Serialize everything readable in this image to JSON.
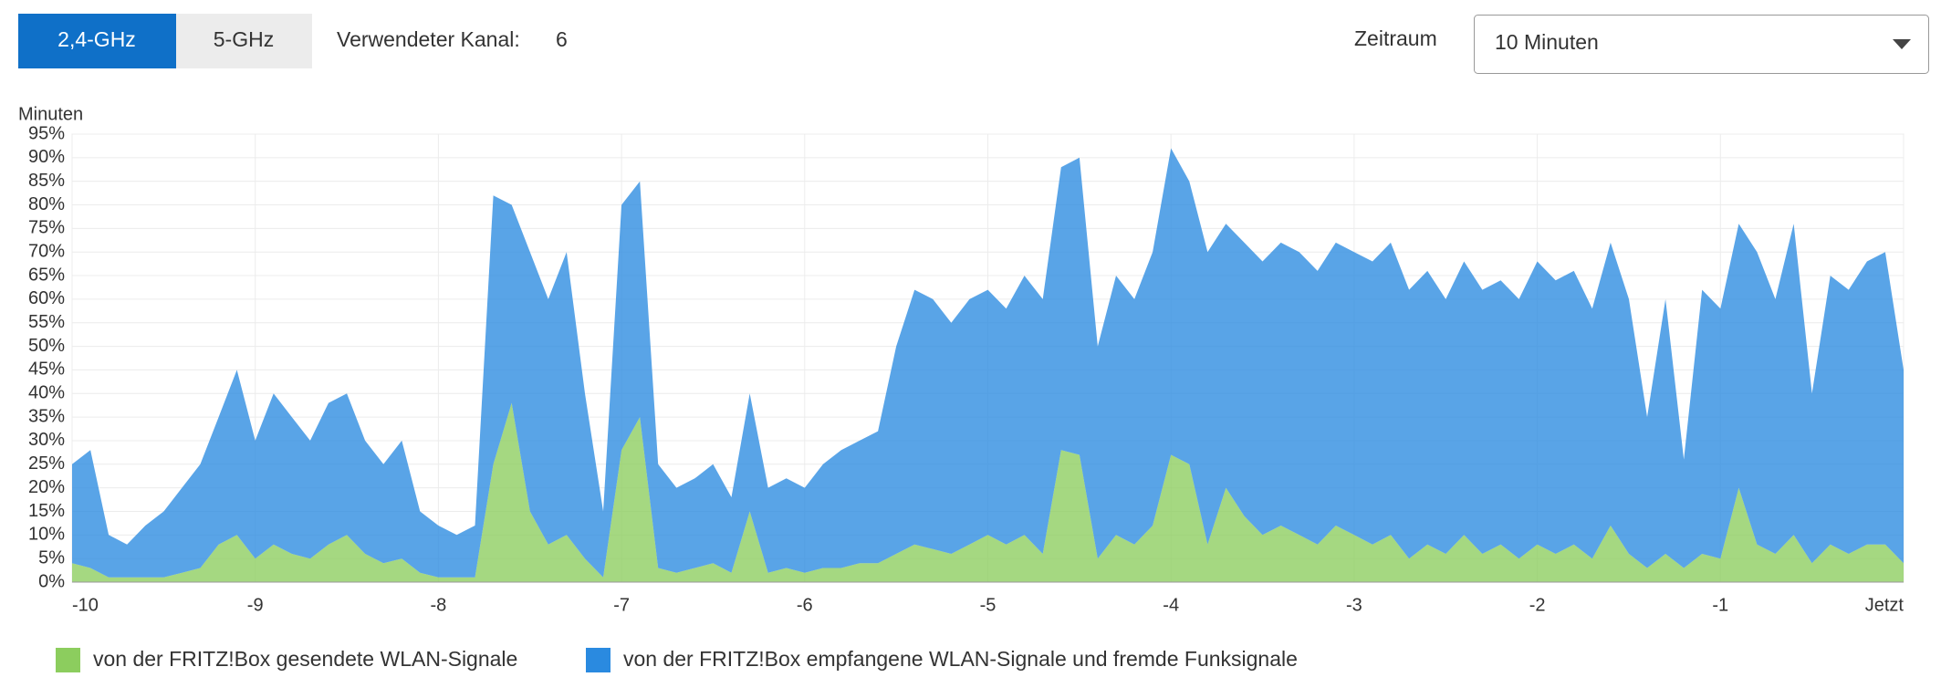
{
  "tabs": [
    "2,4-GHz",
    "5-GHz"
  ],
  "channel_label": "Verwendeter Kanal:",
  "channel": 6,
  "period_label": "Zeitraum",
  "period_value": "10 Minuten",
  "chart_data": {
    "type": "area",
    "stacked": true,
    "y_label": "Minuten",
    "xlim": [
      -10,
      0
    ],
    "xticks": [
      -10,
      -9,
      -8,
      -7,
      -6,
      -5,
      -4,
      -3,
      -2,
      -1,
      {
        "value": 0,
        "label": "Jetzt"
      }
    ],
    "ylim": [
      0,
      95
    ],
    "yticks": [
      {
        "value": 0,
        "label": "0%"
      },
      {
        "value": 5,
        "label": "5%"
      },
      {
        "value": 10,
        "label": "10%"
      },
      {
        "value": 15,
        "label": "15%"
      },
      {
        "value": 20,
        "label": "20%"
      },
      {
        "value": 25,
        "label": "25%"
      },
      {
        "value": 30,
        "label": "30%"
      },
      {
        "value": 35,
        "label": "35%"
      },
      {
        "value": 40,
        "label": "40%"
      },
      {
        "value": 45,
        "label": "45%"
      },
      {
        "value": 50,
        "label": "50%"
      },
      {
        "value": 55,
        "label": "55%"
      },
      {
        "value": 60,
        "label": "60%"
      },
      {
        "value": 65,
        "label": "65%"
      },
      {
        "value": 70,
        "label": "70%"
      },
      {
        "value": 75,
        "label": "75%"
      },
      {
        "value": 80,
        "label": "80%"
      },
      {
        "value": 85,
        "label": "85%"
      },
      {
        "value": 90,
        "label": "90%"
      },
      {
        "value": 95,
        "label": "95%"
      }
    ],
    "grid": true,
    "x": [
      -10,
      -9.9,
      -9.8,
      -9.7,
      -9.6,
      -9.5,
      -9.4,
      -9.3,
      -9.2,
      -9.1,
      -9,
      -8.9,
      -8.8,
      -8.7,
      -8.6,
      -8.5,
      -8.4,
      -8.3,
      -8.2,
      -8.1,
      -8,
      -7.9,
      -7.8,
      -7.7,
      -7.6,
      -7.5,
      -7.4,
      -7.3,
      -7.2,
      -7.1,
      -7,
      -6.9,
      -6.8,
      -6.7,
      -6.6,
      -6.5,
      -6.4,
      -6.3,
      -6.2,
      -6.1,
      -6,
      -5.9,
      -5.8,
      -5.7,
      -5.6,
      -5.5,
      -5.4,
      -5.3,
      -5.2,
      -5.1,
      -5,
      -4.9,
      -4.8,
      -4.7,
      -4.6,
      -4.5,
      -4.4,
      -4.3,
      -4.2,
      -4.1,
      -4,
      -3.9,
      -3.8,
      -3.7,
      -3.6,
      -3.5,
      -3.4,
      -3.3,
      -3.2,
      -3.1,
      -3,
      -2.9,
      -2.8,
      -2.7,
      -2.6,
      -2.5,
      -2.4,
      -2.3,
      -2.2,
      -2.1,
      -2,
      -1.9,
      -1.8,
      -1.7,
      -1.6,
      -1.5,
      -1.4,
      -1.3,
      -1.2,
      -1.1,
      -1,
      -0.9,
      -0.8,
      -0.7,
      -0.6,
      -0.5,
      -0.4,
      -0.3,
      -0.2,
      -0.1,
      0
    ],
    "series": [
      {
        "name": "von der FRITZ!Box gesendete WLAN-Signale",
        "color": "#8ccd5e",
        "values": [
          4,
          3,
          1,
          1,
          1,
          1,
          2,
          3,
          8,
          10,
          5,
          8,
          6,
          5,
          8,
          10,
          6,
          4,
          5,
          2,
          1,
          1,
          1,
          25,
          38,
          15,
          8,
          10,
          5,
          1,
          28,
          35,
          3,
          2,
          3,
          4,
          2,
          15,
          2,
          3,
          2,
          3,
          3,
          4,
          4,
          6,
          8,
          7,
          6,
          8,
          10,
          8,
          10,
          6,
          28,
          27,
          5,
          10,
          8,
          12,
          27,
          25,
          8,
          20,
          14,
          10,
          12,
          10,
          8,
          12,
          10,
          8,
          10,
          5,
          8,
          6,
          10,
          6,
          8,
          5,
          8,
          6,
          8,
          5,
          12,
          6,
          3,
          6,
          3,
          6,
          5,
          20,
          8,
          6,
          10,
          4,
          8,
          6,
          8,
          8,
          4
        ]
      },
      {
        "name": "von der FRITZ!Box empfangene WLAN-Signale und fremde Funksignale",
        "color": "#2a8ae0",
        "values": [
          21,
          25,
          9,
          7,
          11,
          14,
          18,
          22,
          27,
          35,
          25,
          32,
          29,
          25,
          30,
          30,
          24,
          21,
          25,
          13,
          11,
          9,
          11,
          57,
          42,
          55,
          52,
          60,
          35,
          14,
          52,
          50,
          22,
          18,
          19,
          21,
          16,
          25,
          18,
          19,
          18,
          22,
          25,
          26,
          28,
          44,
          54,
          53,
          49,
          52,
          52,
          50,
          55,
          54,
          60,
          63,
          45,
          55,
          52,
          58,
          65,
          60,
          62,
          56,
          58,
          58,
          60,
          60,
          58,
          60,
          60,
          60,
          62,
          57,
          58,
          54,
          58,
          56,
          56,
          55,
          60,
          58,
          58,
          53,
          60,
          54,
          32,
          54,
          23,
          56,
          53,
          56,
          62,
          54,
          66,
          36,
          57,
          56,
          60,
          62,
          41
        ]
      }
    ]
  }
}
